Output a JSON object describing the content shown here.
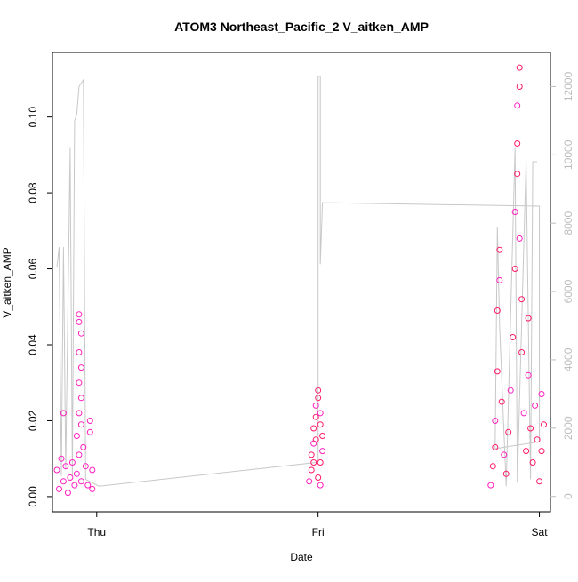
{
  "chart_data": {
    "type": "scatter",
    "title": "ATOM3 Northeast_Pacific_2 V_aitken_AMP",
    "xlabel": "Date",
    "ylabel": "V_aitken_AMP",
    "x_ticks": [
      "Thu",
      "Fri",
      "Sat"
    ],
    "y_ticks": [
      "0.00",
      "0.02",
      "0.04",
      "0.06",
      "0.08",
      "0.10"
    ],
    "y2_ticks": [
      "0",
      "2000",
      "4000",
      "6000",
      "8000",
      "10000",
      "12000"
    ],
    "xlim": [
      -0.2,
      2.05
    ],
    "ylim": [
      -0.004,
      0.117
    ],
    "y2lim": [
      -450,
      13000
    ],
    "grid": false,
    "colors": {
      "points_magenta": "#ff1fc0",
      "points_pink": "#ff1a66",
      "line": "#c8c8c8",
      "axis": "#000000",
      "right_axis": "#bdbdbd"
    },
    "series": [
      {
        "kind": "points",
        "values": [
          {
            "x": -0.18,
            "y": 0.007
          },
          {
            "x": -0.17,
            "y": 0.002
          },
          {
            "x": -0.16,
            "y": 0.01
          },
          {
            "x": -0.15,
            "y": 0.004
          },
          {
            "x": -0.14,
            "y": 0.008
          },
          {
            "x": -0.13,
            "y": 0.001
          },
          {
            "x": -0.15,
            "y": 0.022
          },
          {
            "x": -0.12,
            "y": 0.005
          },
          {
            "x": -0.11,
            "y": 0.009
          },
          {
            "x": -0.1,
            "y": 0.003
          },
          {
            "x": -0.09,
            "y": 0.006
          },
          {
            "x": -0.08,
            "y": 0.011
          },
          {
            "x": -0.07,
            "y": 0.004
          },
          {
            "x": -0.09,
            "y": 0.016
          },
          {
            "x": -0.08,
            "y": 0.048
          },
          {
            "x": -0.08,
            "y": 0.046
          },
          {
            "x": -0.07,
            "y": 0.043
          },
          {
            "x": -0.08,
            "y": 0.038
          },
          {
            "x": -0.07,
            "y": 0.034
          },
          {
            "x": -0.08,
            "y": 0.03
          },
          {
            "x": -0.07,
            "y": 0.026
          },
          {
            "x": -0.08,
            "y": 0.022
          },
          {
            "x": -0.07,
            "y": 0.019
          },
          {
            "x": -0.06,
            "y": 0.013
          },
          {
            "x": -0.05,
            "y": 0.008
          },
          {
            "x": -0.04,
            "y": 0.003
          },
          {
            "x": -0.03,
            "y": 0.017
          },
          {
            "x": -0.03,
            "y": 0.02
          },
          {
            "x": -0.02,
            "y": 0.007
          },
          {
            "x": -0.02,
            "y": 0.002
          }
        ]
      },
      {
        "kind": "points",
        "values": [
          {
            "x": 0.96,
            "y": 0.004
          },
          {
            "x": 0.97,
            "y": 0.007
          },
          {
            "x": 0.97,
            "y": 0.011
          },
          {
            "x": 0.98,
            "y": 0.014
          },
          {
            "x": 0.98,
            "y": 0.018
          },
          {
            "x": 0.99,
            "y": 0.021
          },
          {
            "x": 0.99,
            "y": 0.024
          },
          {
            "x": 1.0,
            "y": 0.028
          },
          {
            "x": 1.0,
            "y": 0.026
          },
          {
            "x": 1.01,
            "y": 0.022
          },
          {
            "x": 1.01,
            "y": 0.019
          },
          {
            "x": 1.02,
            "y": 0.016
          },
          {
            "x": 1.02,
            "y": 0.012
          },
          {
            "x": 1.01,
            "y": 0.009
          },
          {
            "x": 1.0,
            "y": 0.005
          },
          {
            "x": 1.01,
            "y": 0.003
          },
          {
            "x": 0.99,
            "y": 0.015
          },
          {
            "x": 0.98,
            "y": 0.009
          }
        ]
      },
      {
        "kind": "points",
        "values": [
          {
            "x": 1.78,
            "y": 0.003
          },
          {
            "x": 1.79,
            "y": 0.008
          },
          {
            "x": 1.8,
            "y": 0.013
          },
          {
            "x": 1.8,
            "y": 0.02
          },
          {
            "x": 1.81,
            "y": 0.033
          },
          {
            "x": 1.81,
            "y": 0.049
          },
          {
            "x": 1.82,
            "y": 0.057
          },
          {
            "x": 1.82,
            "y": 0.065
          },
          {
            "x": 1.83,
            "y": 0.025
          },
          {
            "x": 1.84,
            "y": 0.011
          },
          {
            "x": 1.85,
            "y": 0.006
          },
          {
            "x": 1.86,
            "y": 0.017
          },
          {
            "x": 1.87,
            "y": 0.028
          },
          {
            "x": 1.88,
            "y": 0.042
          },
          {
            "x": 1.89,
            "y": 0.06
          },
          {
            "x": 1.89,
            "y": 0.075
          },
          {
            "x": 1.9,
            "y": 0.085
          },
          {
            "x": 1.9,
            "y": 0.093
          },
          {
            "x": 1.9,
            "y": 0.103
          },
          {
            "x": 1.91,
            "y": 0.108
          },
          {
            "x": 1.91,
            "y": 0.113
          },
          {
            "x": 1.91,
            "y": 0.068
          },
          {
            "x": 1.92,
            "y": 0.052
          },
          {
            "x": 1.92,
            "y": 0.038
          },
          {
            "x": 1.93,
            "y": 0.022
          },
          {
            "x": 1.94,
            "y": 0.012
          },
          {
            "x": 1.95,
            "y": 0.047
          },
          {
            "x": 1.95,
            "y": 0.032
          },
          {
            "x": 1.96,
            "y": 0.018
          },
          {
            "x": 1.97,
            "y": 0.009
          },
          {
            "x": 1.98,
            "y": 0.024
          },
          {
            "x": 1.99,
            "y": 0.015
          },
          {
            "x": 2.0,
            "y": 0.004
          },
          {
            "x": 2.01,
            "y": 0.027
          },
          {
            "x": 2.01,
            "y": 0.012
          },
          {
            "x": 2.02,
            "y": 0.019
          }
        ]
      },
      {
        "kind": "line",
        "axis": "right",
        "values": [
          {
            "x": -0.18,
            "y": 6700
          },
          {
            "x": -0.17,
            "y": 7300
          },
          {
            "x": -0.16,
            "y": 600
          },
          {
            "x": -0.15,
            "y": 7300
          },
          {
            "x": -0.14,
            "y": 800
          },
          {
            "x": -0.12,
            "y": 10200
          },
          {
            "x": -0.11,
            "y": 600
          },
          {
            "x": -0.1,
            "y": 11000
          },
          {
            "x": -0.09,
            "y": 11200
          },
          {
            "x": -0.08,
            "y": 12000
          },
          {
            "x": -0.07,
            "y": 12100
          },
          {
            "x": -0.06,
            "y": 12200
          },
          {
            "x": -0.05,
            "y": 500
          },
          {
            "x": 0.01,
            "y": 300
          },
          {
            "x": 1.0,
            "y": 1000
          },
          {
            "x": 1.0,
            "y": 12300
          },
          {
            "x": 1.01,
            "y": 12300
          },
          {
            "x": 1.01,
            "y": 8900
          },
          {
            "x": 1.01,
            "y": 6800
          },
          {
            "x": 1.02,
            "y": 8600
          },
          {
            "x": 2.0,
            "y": 8500
          },
          {
            "x": 2.0,
            "y": 1600
          },
          {
            "x": 1.8,
            "y": 1400
          },
          {
            "x": 1.81,
            "y": 7900
          },
          {
            "x": 1.82,
            "y": 5000
          },
          {
            "x": 1.85,
            "y": 300
          },
          {
            "x": 1.89,
            "y": 10200
          },
          {
            "x": 1.9,
            "y": 400
          },
          {
            "x": 1.94,
            "y": 9800
          },
          {
            "x": 1.96,
            "y": 500
          },
          {
            "x": 1.97,
            "y": 9800
          },
          {
            "x": 1.99,
            "y": 9800
          }
        ]
      }
    ]
  }
}
